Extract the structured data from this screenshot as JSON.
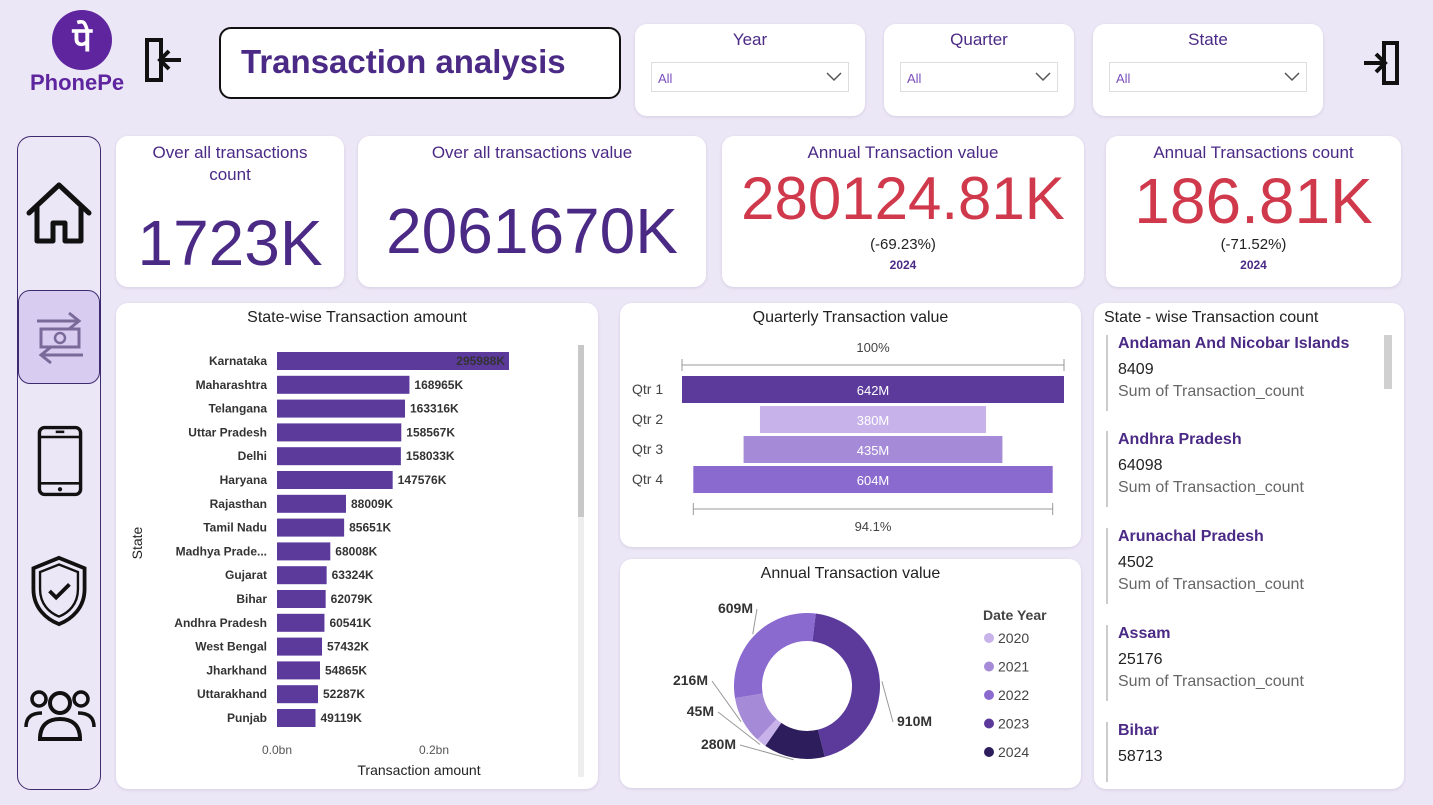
{
  "brand": {
    "logo_glyph": "पे",
    "name": "PhonePe",
    "color": "#5f259f"
  },
  "header": {
    "title": "Transaction analysis"
  },
  "filters": [
    {
      "label": "Year",
      "value": "All"
    },
    {
      "label": "Quarter",
      "value": "All"
    },
    {
      "label": "State",
      "value": "All"
    }
  ],
  "kpis": {
    "count": {
      "label_line1": "Over all transactions",
      "label_line2": "count",
      "value": "1723K"
    },
    "value": {
      "label": "Over all transactions value",
      "value": "2061670K"
    },
    "annual_value": {
      "label": "Annual Transaction value",
      "value": "280124.81K",
      "change": "(-69.23%)",
      "year": "2024"
    },
    "annual_count": {
      "label": "Annual Transactions count",
      "value": "186.81K",
      "change": "(-71.52%)",
      "year": "2024"
    }
  },
  "nav": [
    {
      "icon": "home-icon"
    },
    {
      "icon": "transaction-icon",
      "active": true
    },
    {
      "icon": "phone-icon"
    },
    {
      "icon": "shield-icon"
    },
    {
      "icon": "users-icon"
    }
  ],
  "chart_data": [
    {
      "type": "bar",
      "orientation": "horizontal",
      "title": "State-wise Transaction amount",
      "xlabel": "Transaction amount",
      "ylabel": "State",
      "xticks": [
        "0.0bn",
        "0.2bn"
      ],
      "categories": [
        "Karnataka",
        "Maharashtra",
        "Telangana",
        "Uttar Pradesh",
        "Delhi",
        "Haryana",
        "Rajasthan",
        "Tamil Nadu",
        "Madhya Prade...",
        "Gujarat",
        "Bihar",
        "Andhra Pradesh",
        "West Bengal",
        "Jharkhand",
        "Uttarakhand",
        "Punjab"
      ],
      "values": [
        295988,
        168965,
        163316,
        158567,
        158033,
        147576,
        88009,
        85651,
        68008,
        63324,
        62079,
        60541,
        57432,
        54865,
        52287,
        49119
      ],
      "labels": [
        "295988K",
        "168965K",
        "163316K",
        "158567K",
        "158033K",
        "147576K",
        "88009K",
        "85651K",
        "68008K",
        "63324K",
        "62079K",
        "60541K",
        "57432K",
        "54865K",
        "52287K",
        "49119K"
      ],
      "color": "#5b3a9c"
    },
    {
      "type": "bar",
      "orientation": "funnel",
      "title": "Quarterly Transaction value",
      "categories": [
        "Qtr 1",
        "Qtr 2",
        "Qtr 3",
        "Qtr 4"
      ],
      "values": [
        642,
        380,
        435,
        604
      ],
      "labels": [
        "642M",
        "380M",
        "435M",
        "604M"
      ],
      "top_percent": "100%",
      "bottom_percent": "94.1%",
      "colors": [
        "#5b3a9c",
        "#c7b3ea",
        "#a58ad8",
        "#8b6ad0"
      ]
    },
    {
      "type": "pie",
      "title": "Annual Transaction value",
      "legend_title": "Date Year",
      "legend_position": "right",
      "series": [
        {
          "name": "2020",
          "value": 45,
          "label": "45M",
          "color": "#c7b3ea"
        },
        {
          "name": "2021",
          "value": 216,
          "label": "216M",
          "color": "#a58ad8"
        },
        {
          "name": "2022",
          "value": 609,
          "label": "609M",
          "color": "#8b6ad0"
        },
        {
          "name": "2023",
          "value": 910,
          "label": "910M",
          "color": "#5b3a9c"
        },
        {
          "name": "2024",
          "value": 280,
          "label": "280M",
          "color": "#2e1d5c"
        }
      ]
    }
  ],
  "state_count": {
    "title": "State - wise Transaction count",
    "items": [
      {
        "state": "Andaman And Nicobar Islands",
        "value": "8409",
        "measure": "Sum of Transaction_count"
      },
      {
        "state": "Andhra Pradesh",
        "value": "64098",
        "measure": "Sum of Transaction_count"
      },
      {
        "state": "Arunachal Pradesh",
        "value": "4502",
        "measure": "Sum of Transaction_count"
      },
      {
        "state": "Assam",
        "value": "25176",
        "measure": "Sum of Transaction_count"
      },
      {
        "state": "Bihar",
        "value": "58713",
        "measure": ""
      }
    ]
  },
  "colors": {
    "accent": "#4b2a86",
    "negative": "#d0394b",
    "background": "#ece7f6"
  }
}
